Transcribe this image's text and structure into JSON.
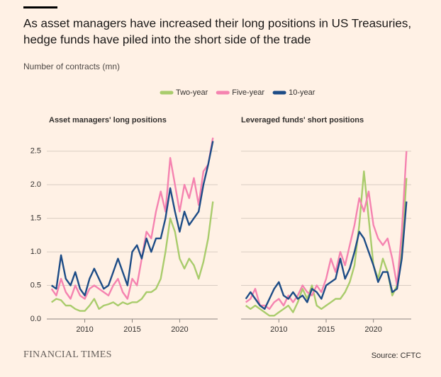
{
  "header": {
    "title_lines": [
      "As asset managers have increased their long positions in US Treasuries,",
      "hedge funds have piled into the short side of the trade"
    ],
    "subtitle": "Number of contracts (mn)"
  },
  "chart_data": [
    {
      "type": "line",
      "title": "Asset managers' long positions",
      "x": [
        2006.5,
        2007,
        2007.5,
        2008,
        2008.5,
        2009,
        2009.5,
        2010,
        2010.5,
        2011,
        2011.5,
        2012,
        2012.5,
        2013,
        2013.5,
        2014,
        2014.5,
        2015,
        2015.5,
        2016,
        2016.5,
        2017,
        2017.5,
        2018,
        2018.5,
        2019,
        2019.5,
        2020,
        2020.5,
        2021,
        2021.5,
        2022,
        2022.5,
        2023,
        2023.5
      ],
      "xlim": [
        2006,
        2024
      ],
      "xticks": [
        2010,
        2015,
        2020
      ],
      "ylim": [
        0,
        2.75
      ],
      "yticks": [
        {
          "value": 0,
          "label": "0.0"
        },
        0.5,
        {
          "value": 1,
          "label": "1.0"
        },
        1.5,
        {
          "value": 2,
          "label": "2.0"
        },
        2.5
      ],
      "grid": true,
      "series": [
        {
          "name": "Two-year",
          "color": "#a9cc6c",
          "values": [
            0.25,
            0.3,
            0.28,
            0.2,
            0.2,
            0.15,
            0.12,
            0.12,
            0.2,
            0.3,
            0.15,
            0.2,
            0.22,
            0.25,
            0.2,
            0.25,
            0.22,
            0.25,
            0.25,
            0.3,
            0.4,
            0.4,
            0.45,
            0.6,
            1.0,
            1.5,
            1.3,
            0.9,
            0.75,
            0.9,
            0.8,
            0.6,
            0.85,
            1.2,
            1.75
          ]
        },
        {
          "name": "Five-year",
          "color": "#f583b0",
          "values": [
            0.45,
            0.35,
            0.6,
            0.4,
            0.3,
            0.5,
            0.35,
            0.3,
            0.45,
            0.5,
            0.45,
            0.4,
            0.35,
            0.5,
            0.6,
            0.4,
            0.3,
            0.6,
            0.5,
            0.9,
            1.3,
            1.2,
            1.6,
            1.9,
            1.6,
            2.4,
            2.0,
            1.6,
            2.0,
            1.8,
            2.1,
            1.7,
            2.2,
            2.3,
            2.7
          ]
        },
        {
          "name": "10-year",
          "color": "#1d4c86",
          "values": [
            0.5,
            0.45,
            0.95,
            0.6,
            0.5,
            0.7,
            0.45,
            0.35,
            0.6,
            0.75,
            0.6,
            0.45,
            0.5,
            0.7,
            0.9,
            0.7,
            0.5,
            1.0,
            1.1,
            0.9,
            1.2,
            1.0,
            1.2,
            1.2,
            1.5,
            1.95,
            1.6,
            1.3,
            1.6,
            1.4,
            1.5,
            1.6,
            2.0,
            2.3,
            2.65
          ]
        }
      ]
    },
    {
      "type": "line",
      "title": "Leveraged funds' short positions",
      "x": [
        2006.5,
        2007,
        2007.5,
        2008,
        2008.5,
        2009,
        2009.5,
        2010,
        2010.5,
        2011,
        2011.5,
        2012,
        2012.5,
        2013,
        2013.5,
        2014,
        2014.5,
        2015,
        2015.5,
        2016,
        2016.5,
        2017,
        2017.5,
        2018,
        2018.5,
        2019,
        2019.5,
        2020,
        2020.5,
        2021,
        2021.5,
        2022,
        2022.5,
        2023,
        2023.5
      ],
      "xlim": [
        2006,
        2024
      ],
      "xticks": [
        2010,
        2015,
        2020
      ],
      "ylim": [
        0,
        2.75
      ],
      "yticks": [
        0,
        0.5,
        1,
        1.5,
        2,
        2.5
      ],
      "grid": true,
      "series": [
        {
          "color": "#a9cc6c",
          "values": [
            0.2,
            0.15,
            0.2,
            0.15,
            0.1,
            0.05,
            0.05,
            0.1,
            0.15,
            0.2,
            0.1,
            0.25,
            0.45,
            0.3,
            0.5,
            0.2,
            0.15,
            0.2,
            0.25,
            0.3,
            0.3,
            0.4,
            0.55,
            0.8,
            1.4,
            2.2,
            1.5,
            0.8,
            0.6,
            0.9,
            0.7,
            0.35,
            0.5,
            1.0,
            2.1
          ]
        },
        {
          "color": "#f583b0",
          "values": [
            0.25,
            0.3,
            0.45,
            0.2,
            0.2,
            0.15,
            0.25,
            0.3,
            0.2,
            0.35,
            0.25,
            0.35,
            0.5,
            0.4,
            0.35,
            0.5,
            0.4,
            0.6,
            0.9,
            0.7,
            1.0,
            0.8,
            1.1,
            1.4,
            1.8,
            1.6,
            1.9,
            1.4,
            1.2,
            1.1,
            1.2,
            0.9,
            0.5,
            1.3,
            2.5
          ]
        },
        {
          "color": "#1d4c86",
          "values": [
            0.3,
            0.4,
            0.3,
            0.2,
            0.15,
            0.3,
            0.45,
            0.55,
            0.35,
            0.3,
            0.4,
            0.3,
            0.35,
            0.25,
            0.45,
            0.4,
            0.3,
            0.5,
            0.55,
            0.6,
            0.9,
            0.6,
            0.75,
            1.0,
            1.3,
            1.2,
            1.0,
            0.8,
            0.55,
            0.7,
            0.7,
            0.4,
            0.45,
            0.9,
            1.75
          ]
        }
      ]
    }
  ],
  "footer": {
    "brand": "FINANCIAL TIMES",
    "source": "Source: CFTC"
  }
}
